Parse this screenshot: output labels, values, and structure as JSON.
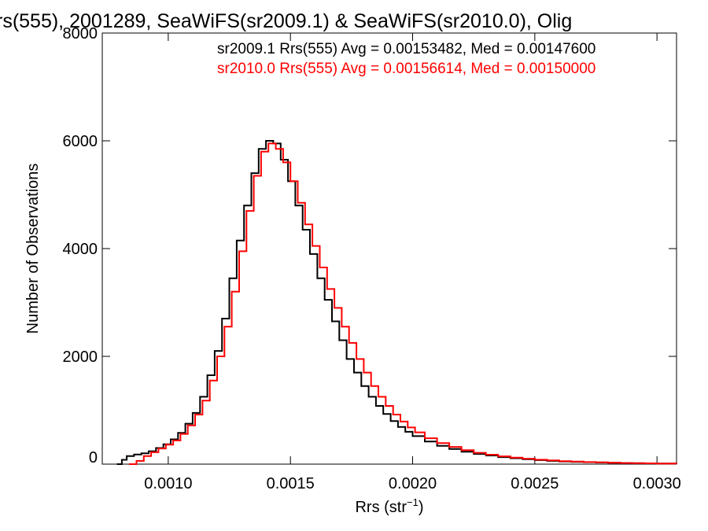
{
  "chart_data": {
    "type": "line",
    "step": true,
    "title": "rs(555), 2001289, SeaWiFS(sr2009.1) & SeaWiFS(sr2010.0), Olig",
    "xlabel_main": "Rrs (str",
    "xlabel_sup": "−1",
    "xlabel_close": ")",
    "ylabel": "Number of Observations",
    "xlim": [
      0.00073,
      0.00308
    ],
    "ylim": [
      0,
      8000
    ],
    "x_ticks": [
      0.001,
      0.0015,
      0.002,
      0.0025,
      0.003
    ],
    "x_tick_labels": [
      "0.0010",
      "0.0015",
      "0.0020",
      "0.0025",
      "0.0030"
    ],
    "y_ticks": [
      0,
      2000,
      4000,
      6000,
      8000
    ],
    "y_tick_labels": [
      "0",
      "2000",
      "4000",
      "6000",
      "8000"
    ],
    "grid": false,
    "legend_position": "top-right",
    "annotations": [
      {
        "text": "sr2009.1 Rrs(555) Avg = 0.00153482, Med = 0.00147600",
        "color": "#000000"
      },
      {
        "text": "sr2010.0 Rrs(555) Avg = 0.00156614, Med = 0.00150000",
        "color": "#ff0000"
      }
    ],
    "series": [
      {
        "color": "#000000",
        "points": [
          [
            0.00079,
            0
          ],
          [
            0.00081,
            80
          ],
          [
            0.00083,
            150
          ],
          [
            0.00086,
            180
          ],
          [
            0.00089,
            200
          ],
          [
            0.00092,
            240
          ],
          [
            0.00095,
            300
          ],
          [
            0.00098,
            370
          ],
          [
            0.00101,
            460
          ],
          [
            0.00104,
            580
          ],
          [
            0.00107,
            750
          ],
          [
            0.0011,
            950
          ],
          [
            0.00113,
            1250
          ],
          [
            0.00116,
            1650
          ],
          [
            0.00119,
            2100
          ],
          [
            0.00122,
            2700
          ],
          [
            0.00125,
            3450
          ],
          [
            0.00128,
            4150
          ],
          [
            0.00131,
            4800
          ],
          [
            0.00134,
            5400
          ],
          [
            0.00137,
            5850
          ],
          [
            0.0014,
            6000
          ],
          [
            0.00143,
            5950
          ],
          [
            0.00146,
            5650
          ],
          [
            0.00149,
            5250
          ],
          [
            0.00152,
            4800
          ],
          [
            0.00155,
            4350
          ],
          [
            0.00158,
            3900
          ],
          [
            0.00161,
            3450
          ],
          [
            0.00164,
            3050
          ],
          [
            0.00167,
            2650
          ],
          [
            0.0017,
            2300
          ],
          [
            0.00173,
            1950
          ],
          [
            0.00176,
            1700
          ],
          [
            0.00179,
            1450
          ],
          [
            0.00182,
            1250
          ],
          [
            0.00185,
            1080
          ],
          [
            0.00188,
            930
          ],
          [
            0.00191,
            800
          ],
          [
            0.00194,
            690
          ],
          [
            0.00197,
            600
          ],
          [
            0.002,
            520
          ],
          [
            0.00205,
            420
          ],
          [
            0.0021,
            340
          ],
          [
            0.00215,
            280
          ],
          [
            0.0022,
            230
          ],
          [
            0.00225,
            190
          ],
          [
            0.0023,
            160
          ],
          [
            0.00235,
            130
          ],
          [
            0.0024,
            110
          ],
          [
            0.00245,
            90
          ],
          [
            0.0025,
            75
          ],
          [
            0.00255,
            60
          ],
          [
            0.0026,
            50
          ],
          [
            0.00265,
            42
          ],
          [
            0.0027,
            36
          ],
          [
            0.00275,
            30
          ],
          [
            0.0028,
            25
          ],
          [
            0.00285,
            20
          ],
          [
            0.0029,
            16
          ],
          [
            0.00295,
            13
          ],
          [
            0.003,
            10
          ],
          [
            0.00308,
            8
          ]
        ]
      },
      {
        "color": "#ff0000",
        "points": [
          [
            0.00084,
            0
          ],
          [
            0.00087,
            60
          ],
          [
            0.0009,
            150
          ],
          [
            0.00093,
            220
          ],
          [
            0.00096,
            290
          ],
          [
            0.00099,
            360
          ],
          [
            0.00102,
            440
          ],
          [
            0.00105,
            560
          ],
          [
            0.00108,
            720
          ],
          [
            0.00111,
            920
          ],
          [
            0.00114,
            1180
          ],
          [
            0.00117,
            1550
          ],
          [
            0.0012,
            2000
          ],
          [
            0.00123,
            2550
          ],
          [
            0.00126,
            3200
          ],
          [
            0.00129,
            3950
          ],
          [
            0.00132,
            4700
          ],
          [
            0.00135,
            5350
          ],
          [
            0.00138,
            5800
          ],
          [
            0.00141,
            5950
          ],
          [
            0.00144,
            5850
          ],
          [
            0.00147,
            5600
          ],
          [
            0.0015,
            5250
          ],
          [
            0.00153,
            4850
          ],
          [
            0.00156,
            4450
          ],
          [
            0.00159,
            4050
          ],
          [
            0.00162,
            3650
          ],
          [
            0.00165,
            3250
          ],
          [
            0.00168,
            2900
          ],
          [
            0.00171,
            2550
          ],
          [
            0.00174,
            2250
          ],
          [
            0.00177,
            1950
          ],
          [
            0.0018,
            1700
          ],
          [
            0.00183,
            1450
          ],
          [
            0.00186,
            1250
          ],
          [
            0.00189,
            1080
          ],
          [
            0.00192,
            920
          ],
          [
            0.00195,
            790
          ],
          [
            0.00198,
            680
          ],
          [
            0.00201,
            590
          ],
          [
            0.00205,
            480
          ],
          [
            0.0021,
            390
          ],
          [
            0.00215,
            320
          ],
          [
            0.0022,
            260
          ],
          [
            0.00225,
            210
          ],
          [
            0.0023,
            175
          ],
          [
            0.00235,
            145
          ],
          [
            0.0024,
            120
          ],
          [
            0.00245,
            100
          ],
          [
            0.0025,
            82
          ],
          [
            0.00255,
            68
          ],
          [
            0.0026,
            56
          ],
          [
            0.00265,
            46
          ],
          [
            0.0027,
            38
          ],
          [
            0.00275,
            32
          ],
          [
            0.0028,
            26
          ],
          [
            0.00285,
            21
          ],
          [
            0.0029,
            17
          ],
          [
            0.00295,
            14
          ],
          [
            0.003,
            11
          ],
          [
            0.00308,
            9
          ]
        ]
      }
    ]
  }
}
